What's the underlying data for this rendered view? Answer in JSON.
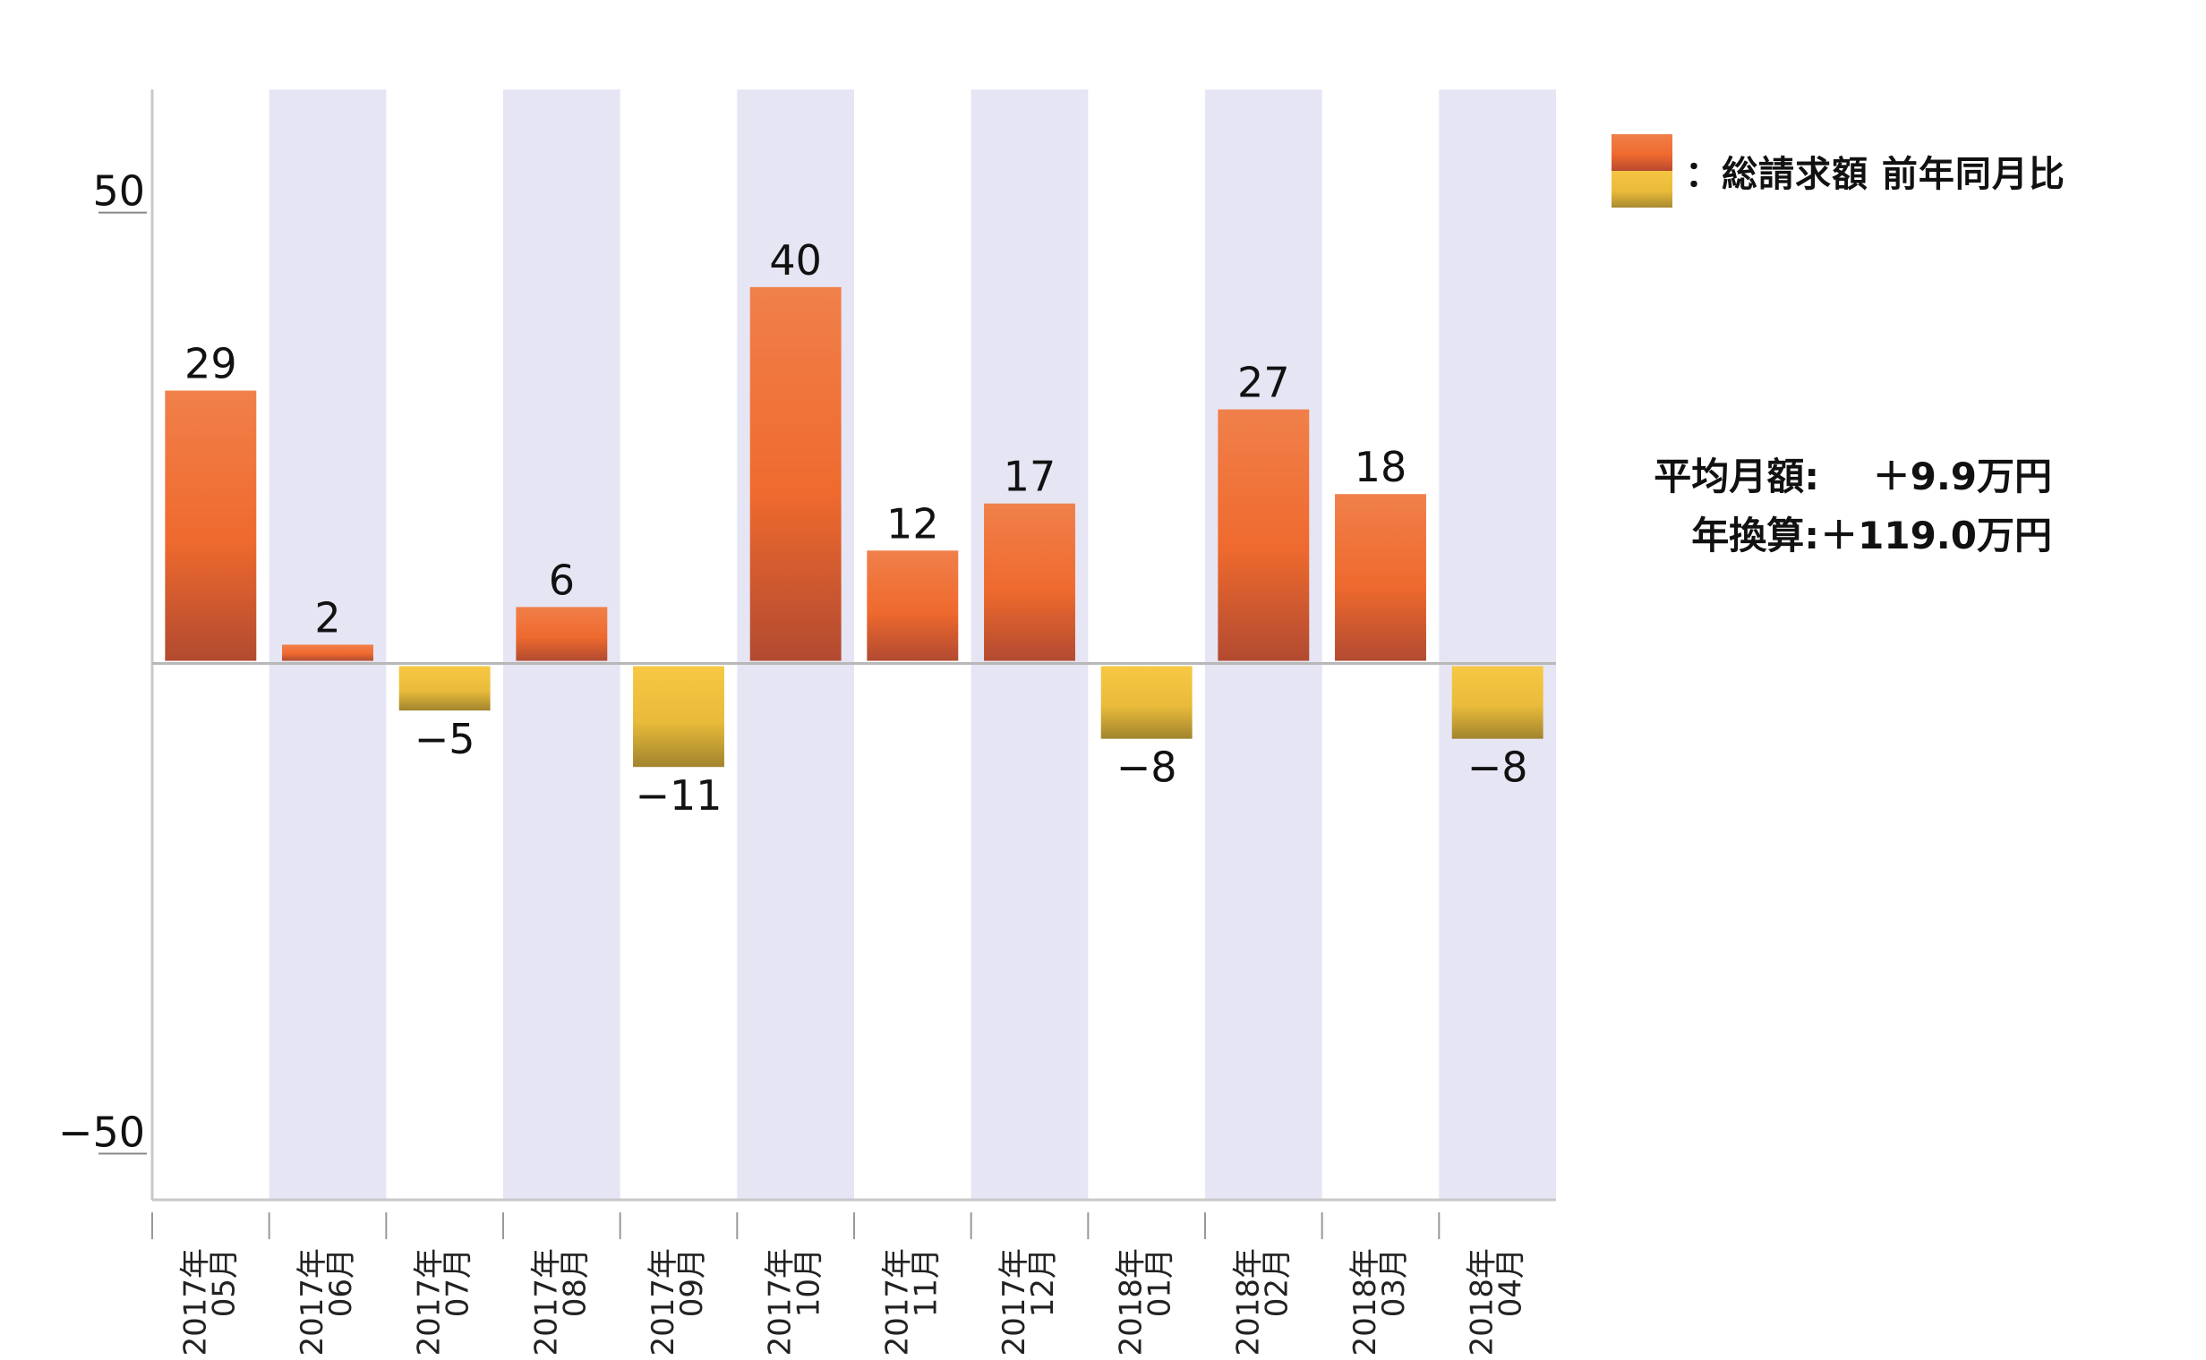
{
  "chart_data": {
    "type": "bar",
    "categories": [
      "2017年05月",
      "2017年06月",
      "2017年07月",
      "2017年08月",
      "2017年09月",
      "2017年10月",
      "2017年11月",
      "2017年12月",
      "2018年01月",
      "2018年02月",
      "2018年03月",
      "2018年04月"
    ],
    "category_labels": [
      [
        "2017年",
        "05月"
      ],
      [
        "2017年",
        "06月"
      ],
      [
        "2017年",
        "07月"
      ],
      [
        "2017年",
        "08月"
      ],
      [
        "2017年",
        "09月"
      ],
      [
        "2017年",
        "10月"
      ],
      [
        "2017年",
        "11月"
      ],
      [
        "2017年",
        "12月"
      ],
      [
        "2018年",
        "01月"
      ],
      [
        "2018年",
        "02月"
      ],
      [
        "2018年",
        "03月"
      ],
      [
        "2018年",
        "04月"
      ]
    ],
    "values": [
      29,
      2,
      -5,
      6,
      -11,
      40,
      12,
      17,
      -8,
      27,
      18,
      -8
    ],
    "data_labels": [
      "29",
      "2",
      "−5",
      "6",
      "−11",
      "40",
      "12",
      "17",
      "−8",
      "27",
      "18",
      "−8"
    ],
    "ylim": [
      -57,
      61
    ],
    "yticks": [
      50,
      -50
    ],
    "ytick_labels": [
      "50",
      "−50"
    ],
    "grid": false,
    "alternating_band_color": "#e6e5f4",
    "colors": {
      "positive": "#ef6a2e",
      "negative": "#f3c13f"
    },
    "legend": {
      "placement": "right",
      "label": "：総請求額 前年同月比"
    }
  },
  "summary": {
    "average_label": "平均月額:",
    "average_value": "＋9.9万円",
    "annual_label": "年換算:",
    "annual_value": "＋119.0万円"
  }
}
